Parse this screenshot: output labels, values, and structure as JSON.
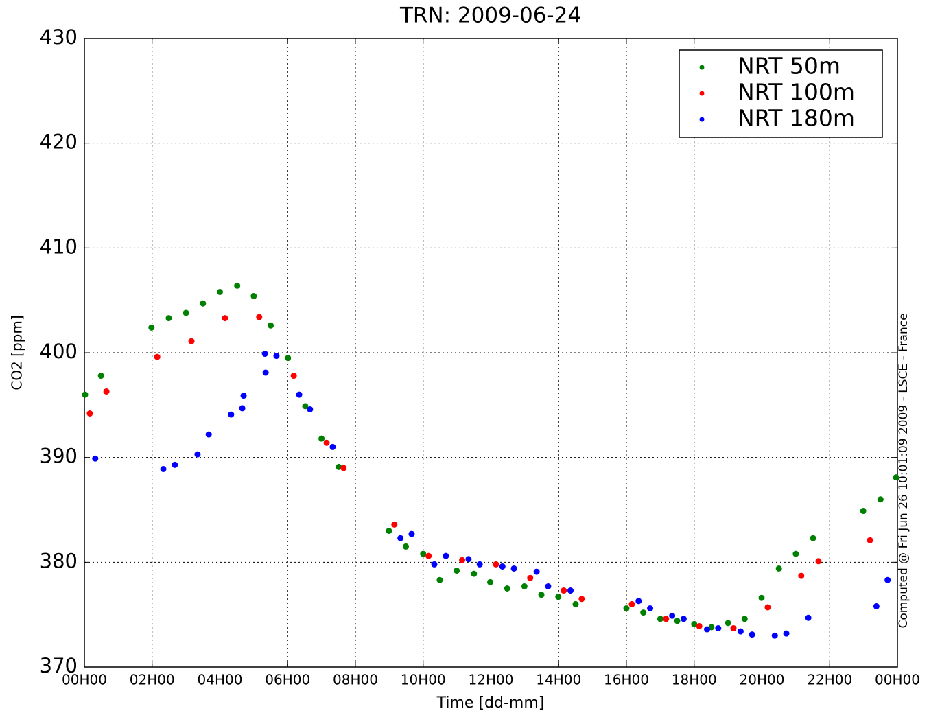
{
  "chart_data": {
    "type": "scatter",
    "title": "TRN: 2009-06-24",
    "x_label": "Time [dd-mm]",
    "y_label": "CO2 [ppm]",
    "annotation": "Computed @ Fri Jun 26 10:01:09 2009 - LSCE - France",
    "xlim": [
      0,
      24
    ],
    "ylim": [
      370,
      430
    ],
    "xticks": [
      {
        "value": 0,
        "label": "00H00"
      },
      {
        "value": 2,
        "label": "02H00"
      },
      {
        "value": 4,
        "label": "04H00"
      },
      {
        "value": 6,
        "label": "06H00"
      },
      {
        "value": 8,
        "label": "08H00"
      },
      {
        "value": 10,
        "label": "10H00"
      },
      {
        "value": 12,
        "label": "12H00"
      },
      {
        "value": 14,
        "label": "14H00"
      },
      {
        "value": 16,
        "label": "16H00"
      },
      {
        "value": 18,
        "label": "18H00"
      },
      {
        "value": 20,
        "label": "20H00"
      },
      {
        "value": 22,
        "label": "22H00"
      },
      {
        "value": 24,
        "label": "00H00"
      }
    ],
    "yticks": [
      370,
      380,
      390,
      400,
      410,
      420,
      430
    ],
    "grid": true,
    "legend": "upper right",
    "series": [
      {
        "name": "NRT 50m",
        "color": "#008000",
        "x": [
          0.02,
          0.49,
          1.98,
          2.49,
          3.0,
          3.5,
          4.0,
          4.51,
          5.0,
          5.5,
          6.01,
          6.52,
          7.0,
          7.51,
          8.99,
          9.49,
          10.0,
          10.49,
          10.99,
          11.5,
          11.98,
          12.48,
          12.99,
          13.49,
          13.99,
          14.5,
          16.0,
          16.5,
          17.0,
          17.5,
          18.0,
          18.51,
          19.0,
          19.49,
          19.99,
          20.5,
          21.0,
          21.51,
          22.99,
          23.5,
          23.96
        ],
        "values": [
          396.0,
          397.8,
          402.4,
          403.3,
          403.8,
          404.7,
          405.8,
          406.4,
          405.4,
          402.6,
          399.5,
          394.9,
          391.8,
          389.1,
          383.0,
          381.5,
          380.8,
          378.3,
          379.2,
          378.9,
          378.1,
          377.5,
          377.7,
          376.9,
          376.7,
          376.0,
          375.6,
          375.2,
          374.6,
          374.4,
          374.1,
          373.8,
          374.2,
          374.6,
          376.6,
          379.4,
          380.8,
          382.3,
          384.9,
          386.0,
          388.1
        ]
      },
      {
        "name": "NRT 100m",
        "color": "#ff0000",
        "x": [
          0.16,
          0.65,
          2.15,
          3.16,
          4.15,
          5.16,
          6.18,
          7.15,
          7.65,
          9.15,
          10.16,
          11.15,
          12.15,
          13.16,
          14.15,
          14.68,
          16.16,
          17.17,
          18.15,
          19.16,
          20.17,
          21.16,
          21.67,
          23.19
        ],
        "values": [
          394.2,
          396.3,
          399.6,
          401.1,
          403.3,
          403.4,
          397.8,
          391.4,
          389.0,
          383.6,
          380.6,
          380.2,
          379.8,
          378.5,
          377.3,
          376.5,
          376.0,
          374.6,
          373.9,
          373.7,
          375.7,
          378.7,
          380.1,
          382.1
        ]
      },
      {
        "name": "NRT 180m",
        "color": "#0000ff",
        "x": [
          0.32,
          2.33,
          2.67,
          3.34,
          3.67,
          4.33,
          4.66,
          4.7,
          5.33,
          5.35,
          5.67,
          6.34,
          6.66,
          7.33,
          9.33,
          9.66,
          10.33,
          10.67,
          11.34,
          11.67,
          12.34,
          12.68,
          13.35,
          13.69,
          14.35,
          16.36,
          16.7,
          17.35,
          17.69,
          18.38,
          18.71,
          19.37,
          19.71,
          20.38,
          20.72,
          21.37,
          23.38,
          23.71
        ],
        "values": [
          389.9,
          388.9,
          389.3,
          390.3,
          392.2,
          394.1,
          394.7,
          395.9,
          399.9,
          398.1,
          399.7,
          396.0,
          394.6,
          391.0,
          382.3,
          382.7,
          379.8,
          380.6,
          380.3,
          379.8,
          379.6,
          379.4,
          379.1,
          377.7,
          377.3,
          376.3,
          375.6,
          374.9,
          374.6,
          373.6,
          373.7,
          373.4,
          373.1,
          373.0,
          373.2,
          374.7,
          375.8,
          378.3
        ]
      }
    ]
  }
}
